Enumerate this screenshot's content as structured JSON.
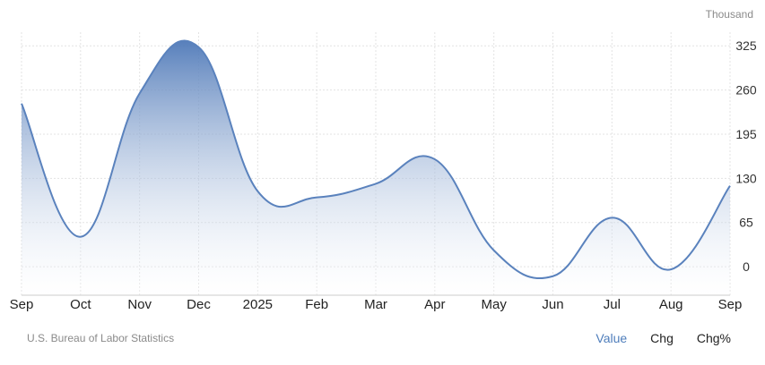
{
  "unit_label": "Thousand",
  "source": "U.S. Bureau of Labor Statistics",
  "tabs": [
    {
      "label": "Value",
      "active": true
    },
    {
      "label": "Chg",
      "active": false
    },
    {
      "label": "Chg%",
      "active": false
    }
  ],
  "colors": {
    "line": "#5a82bd",
    "fill_top": "#4f79b8",
    "grid": "#e3e3e3"
  },
  "chart_data": {
    "type": "area",
    "x": [
      "Sep",
      "Oct",
      "Nov",
      "Dec",
      "2025",
      "Feb",
      "Mar",
      "Apr",
      "May",
      "Jun",
      "Jul",
      "Aug",
      "Sep"
    ],
    "values": [
      240,
      44,
      255,
      323,
      111,
      102,
      122,
      158,
      24,
      -14,
      72,
      -4,
      119
    ],
    "yticks": [
      0,
      65,
      130,
      195,
      260,
      325
    ],
    "ylim": [
      -42,
      345
    ],
    "grid": true
  }
}
